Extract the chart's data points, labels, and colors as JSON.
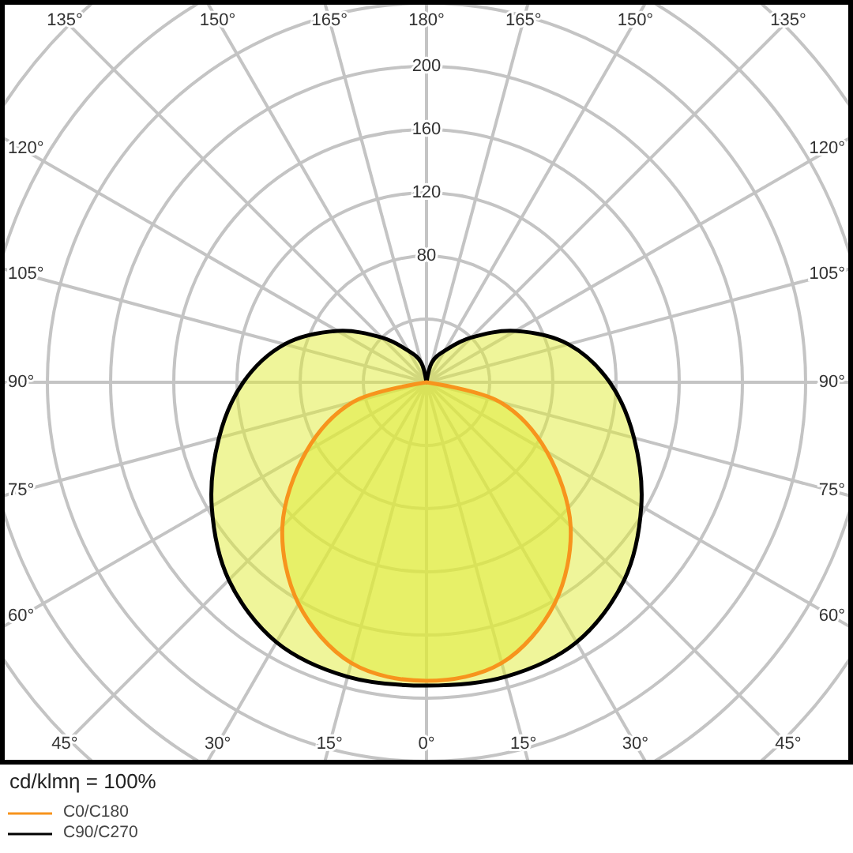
{
  "chart_data": {
    "type": "radar",
    "categories": [
      "180°",
      "165°",
      "150°",
      "135°",
      "120°",
      "105°",
      "90°",
      "75°",
      "60°",
      "45°",
      "30°",
      "15°",
      "0°",
      "15°",
      "30°",
      "45°",
      "60°",
      "75°",
      "90°",
      "105°",
      "120°",
      "135°",
      "150°",
      "165°"
    ],
    "series": [
      {
        "name": "C0/C180",
        "color": "#f7941d",
        "values": [
          0,
          0,
          0,
          0,
          0,
          0,
          0,
          48,
          88,
          129,
          162,
          184,
          189,
          184,
          162,
          129,
          88,
          48,
          0,
          0,
          0,
          0,
          0,
          0
        ]
      },
      {
        "name": "C90/C270",
        "color": "#000000",
        "values": [
          0,
          13,
          23,
          40,
          65,
          93,
          116,
          136,
          157,
          177,
          190,
          193,
          192,
          193,
          190,
          177,
          157,
          136,
          116,
          93,
          65,
          40,
          23,
          13
        ]
      }
    ],
    "ylim": [
      0,
      320
    ],
    "yticks": [
      80,
      120,
      160,
      200
    ],
    "grid": true,
    "legend": "bottom left",
    "annotations": [
      "cd/klmη = 100%"
    ]
  }
}
